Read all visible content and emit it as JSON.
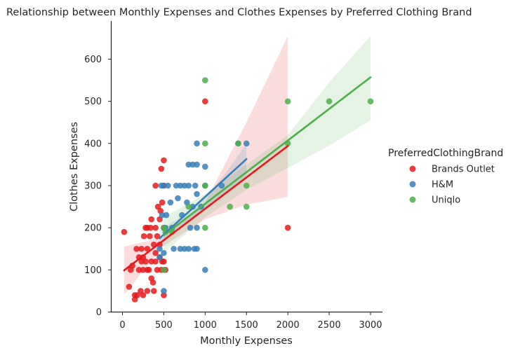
{
  "chart_data": {
    "type": "scatter",
    "title": "Relationship between Monthly Expenses and Clothes Expenses by Preferred Clothing Brand",
    "xlabel": "Monthly Expenses",
    "ylabel": "Clothes Expenses",
    "xlim": [
      -150,
      3150
    ],
    "ylim": [
      0,
      690
    ],
    "xticks": [
      0,
      500,
      1000,
      1500,
      2000,
      2500,
      3000
    ],
    "yticks": [
      0,
      100,
      200,
      300,
      400,
      500,
      600
    ],
    "grid": false,
    "legend": {
      "title": "PreferredClothingBrand",
      "placement": "right"
    },
    "series": [
      {
        "name": "Brands Outlet",
        "color": "#e41a1c",
        "points": [
          [
            20,
            190
          ],
          [
            80,
            60
          ],
          [
            100,
            100
          ],
          [
            120,
            110
          ],
          [
            150,
            40
          ],
          [
            150,
            30
          ],
          [
            170,
            150
          ],
          [
            180,
            40
          ],
          [
            200,
            130
          ],
          [
            200,
            100
          ],
          [
            220,
            50
          ],
          [
            230,
            120
          ],
          [
            230,
            150
          ],
          [
            250,
            40
          ],
          [
            250,
            100
          ],
          [
            250,
            130
          ],
          [
            260,
            180
          ],
          [
            280,
            120
          ],
          [
            280,
            200
          ],
          [
            300,
            150
          ],
          [
            300,
            200
          ],
          [
            300,
            50
          ],
          [
            300,
            100
          ],
          [
            320,
            100
          ],
          [
            330,
            180
          ],
          [
            340,
            200
          ],
          [
            350,
            80
          ],
          [
            350,
            220
          ],
          [
            350,
            120
          ],
          [
            370,
            70
          ],
          [
            380,
            160
          ],
          [
            380,
            50
          ],
          [
            400,
            300
          ],
          [
            400,
            140
          ],
          [
            400,
            200
          ],
          [
            400,
            120
          ],
          [
            420,
            180
          ],
          [
            420,
            100
          ],
          [
            430,
            250
          ],
          [
            450,
            220
          ],
          [
            450,
            130
          ],
          [
            450,
            160
          ],
          [
            460,
            240
          ],
          [
            470,
            340
          ],
          [
            470,
            100
          ],
          [
            480,
            260
          ],
          [
            480,
            120
          ],
          [
            500,
            360
          ],
          [
            500,
            40
          ],
          [
            500,
            120
          ],
          [
            500,
            300
          ],
          [
            500,
            200
          ],
          [
            520,
            100
          ],
          [
            1000,
            500
          ],
          [
            2000,
            200
          ]
        ],
        "regression": {
          "x": [
            20,
            2000
          ],
          "y": [
            99,
            394
          ]
        },
        "ci_band": {
          "x": [
            20,
            500,
            1000,
            1500,
            2000
          ],
          "lower": [
            42,
            157,
            220,
            255,
            273
          ],
          "upper": [
            155,
            178,
            260,
            450,
            655
          ]
        }
      },
      {
        "name": "H&M",
        "color": "#377eb8",
        "points": [
          [
            450,
            130
          ],
          [
            450,
            150
          ],
          [
            470,
            300
          ],
          [
            480,
            230
          ],
          [
            500,
            140
          ],
          [
            500,
            300
          ],
          [
            500,
            50
          ],
          [
            520,
            200
          ],
          [
            530,
            230
          ],
          [
            550,
            300
          ],
          [
            580,
            260
          ],
          [
            600,
            200
          ],
          [
            620,
            150
          ],
          [
            650,
            300
          ],
          [
            670,
            270
          ],
          [
            700,
            150
          ],
          [
            700,
            300
          ],
          [
            720,
            230
          ],
          [
            750,
            150
          ],
          [
            750,
            300
          ],
          [
            780,
            260
          ],
          [
            800,
            350
          ],
          [
            800,
            150
          ],
          [
            800,
            300
          ],
          [
            820,
            200
          ],
          [
            850,
            350
          ],
          [
            850,
            250
          ],
          [
            870,
            150
          ],
          [
            880,
            300
          ],
          [
            900,
            400
          ],
          [
            900,
            350
          ],
          [
            900,
            280
          ],
          [
            900,
            200
          ],
          [
            900,
            150
          ],
          [
            950,
            250
          ],
          [
            1000,
            100
          ],
          [
            1000,
            300
          ],
          [
            1000,
            345
          ],
          [
            1200,
            300
          ],
          [
            1400,
            400
          ],
          [
            1500,
            400
          ]
        ],
        "regression": {
          "x": [
            450,
            1500
          ],
          "y": [
            175,
            363
          ]
        },
        "ci_band": {
          "x": [
            450,
            700,
            1000,
            1250,
            1500
          ],
          "lower": [
            155,
            205,
            245,
            282,
            325
          ],
          "upper": [
            195,
            225,
            270,
            330,
            400
          ]
        }
      },
      {
        "name": "Uniqlo",
        "color": "#4daf4a",
        "points": [
          [
            500,
            100
          ],
          [
            500,
            200
          ],
          [
            520,
            190
          ],
          [
            600,
            190
          ],
          [
            800,
            250
          ],
          [
            1000,
            200
          ],
          [
            1000,
            300
          ],
          [
            1000,
            400
          ],
          [
            1000,
            550
          ],
          [
            1300,
            250
          ],
          [
            1400,
            400
          ],
          [
            1500,
            250
          ],
          [
            1500,
            300
          ],
          [
            2000,
            500
          ],
          [
            2000,
            400
          ],
          [
            2500,
            500
          ],
          [
            3000,
            500
          ]
        ],
        "regression": {
          "x": [
            500,
            3000
          ],
          "y": [
            182,
            557
          ]
        },
        "ci_band": {
          "x": [
            500,
            1000,
            1500,
            2000,
            2500,
            3000
          ],
          "lower": [
            140,
            225,
            290,
            342,
            395,
            455
          ],
          "upper": [
            225,
            280,
            350,
            420,
            545,
            655
          ]
        }
      }
    ]
  }
}
